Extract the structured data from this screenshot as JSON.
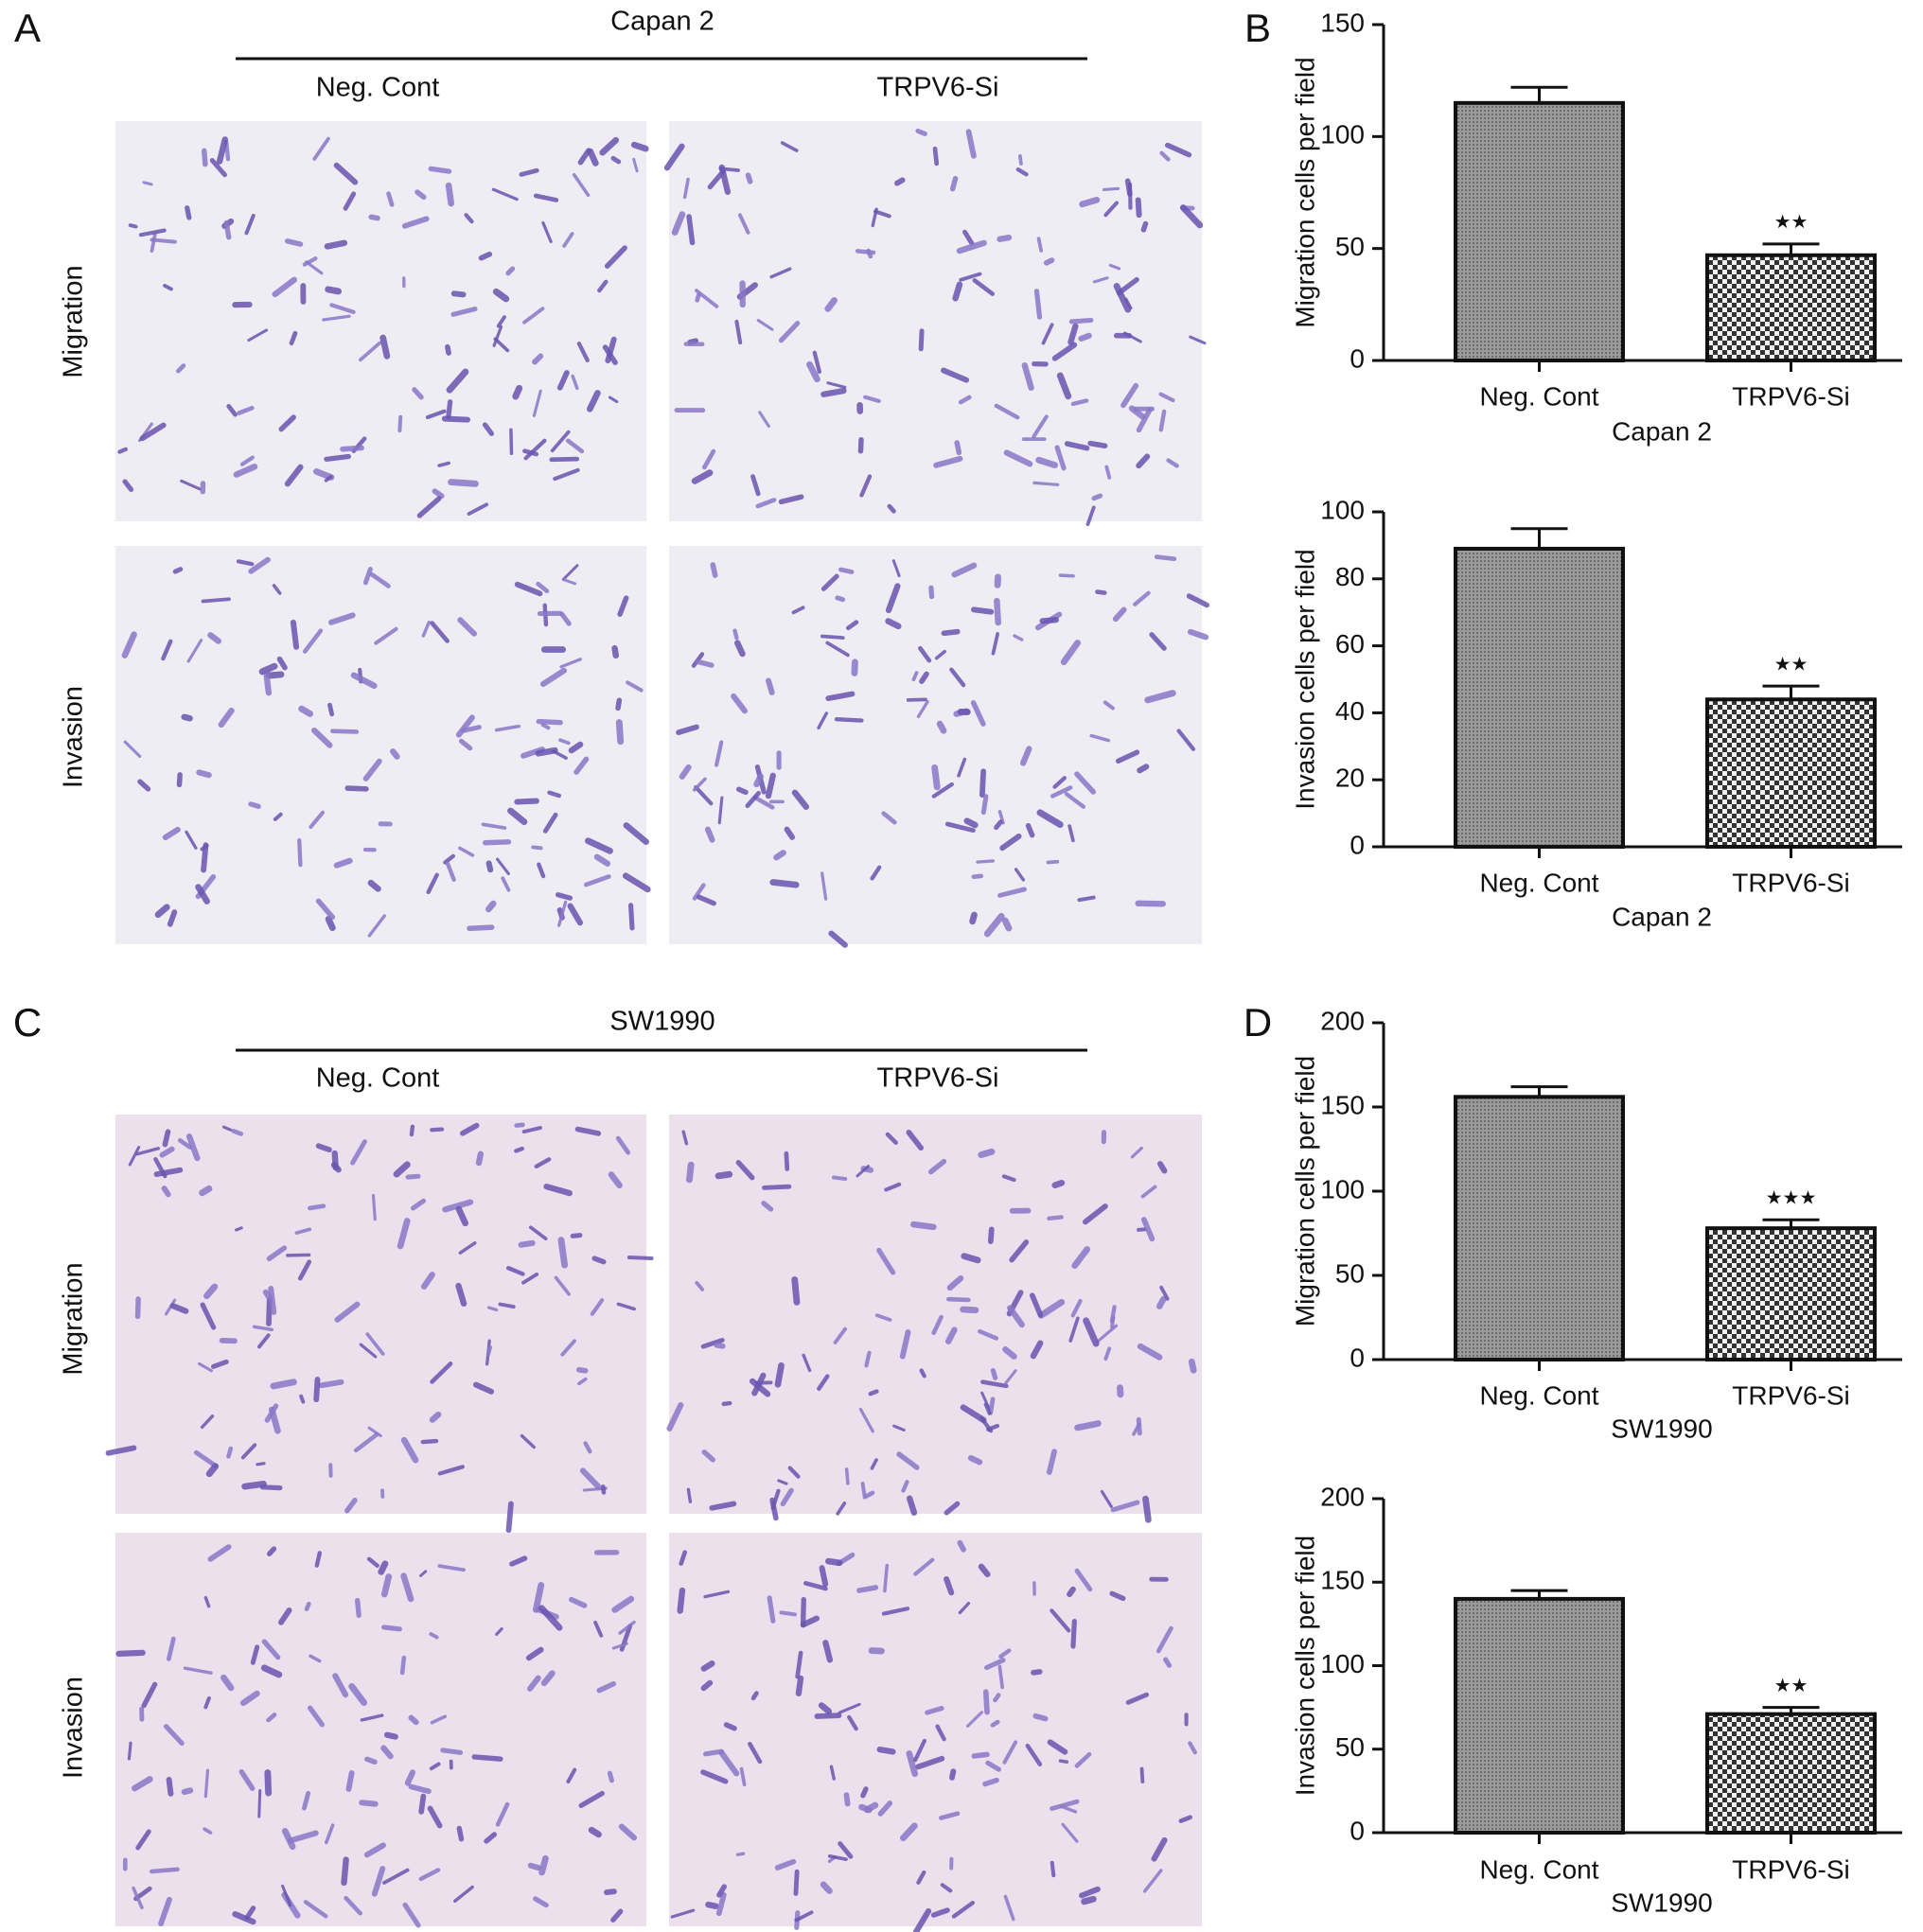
{
  "panel_labels": [
    "A",
    "B",
    "C",
    "D"
  ],
  "micrographs": [
    {
      "cell_line": "Capan 2",
      "columns": [
        "Neg. Cont",
        "TRPV6-Si"
      ],
      "rows": [
        "Migration",
        "Invasion"
      ]
    },
    {
      "cell_line": "SW1990",
      "columns": [
        "Neg. Cont",
        "TRPV6-Si"
      ],
      "rows": [
        "Migration",
        "Invasion"
      ]
    }
  ],
  "chart_data": [
    {
      "type": "bar",
      "ylabel": "Migration cells per field",
      "xlabel": "Capan 2",
      "categories": [
        "Neg. Cont",
        "TRPV6-Si"
      ],
      "values": [
        115,
        47
      ],
      "errors": [
        7,
        5
      ],
      "significance": "★★",
      "ylim": [
        0,
        150
      ],
      "yticks": [
        0,
        50,
        100,
        150
      ]
    },
    {
      "type": "bar",
      "ylabel": "Invasion cells per field",
      "xlabel": "Capan 2",
      "categories": [
        "Neg. Cont",
        "TRPV6-Si"
      ],
      "values": [
        89,
        44
      ],
      "errors": [
        6,
        4
      ],
      "significance": "★★",
      "ylim": [
        0,
        100
      ],
      "yticks": [
        0,
        20,
        40,
        60,
        80,
        100
      ]
    },
    {
      "type": "bar",
      "ylabel": "Migration cells per field",
      "xlabel": "SW1990",
      "categories": [
        "Neg. Cont",
        "TRPV6-Si"
      ],
      "values": [
        156,
        78
      ],
      "errors": [
        6,
        5
      ],
      "significance": "★★★",
      "ylim": [
        0,
        200
      ],
      "yticks": [
        0,
        50,
        100,
        150,
        200
      ]
    },
    {
      "type": "bar",
      "ylabel": "Invasion cells per field",
      "xlabel": "SW1990",
      "categories": [
        "Neg. Cont",
        "TRPV6-Si"
      ],
      "values": [
        140,
        71
      ],
      "errors": [
        5,
        4
      ],
      "significance": "★★",
      "ylim": [
        0,
        200
      ],
      "yticks": [
        0,
        50,
        100,
        150,
        200
      ]
    }
  ]
}
